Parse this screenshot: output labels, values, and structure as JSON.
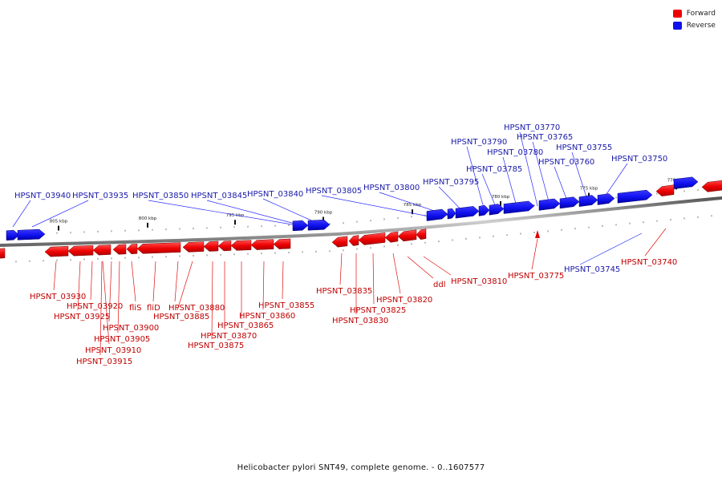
{
  "legend": {
    "forward_label": "Forward",
    "reverse_label": "Reverse",
    "forward_color": "#ff0000",
    "reverse_color": "#1a1aff"
  },
  "caption": "Helicobacter pylori SNT49, complete genome. - 0..1607577",
  "scale_labels": [
    "805 kbp",
    "800 kbp",
    "795 kbp",
    "790 kbp",
    "785 kbp",
    "780 kbp",
    "775 kbp",
    "770 kbp"
  ],
  "reverse_genes": [
    {
      "id": "HPSNT_03940",
      "label": "HPSNT_03940"
    },
    {
      "id": "HPSNT_03935",
      "label": "HPSNT_03935"
    },
    {
      "id": "HPSNT_03850",
      "label": "HPSNT_03850"
    },
    {
      "id": "HPSNT_03845",
      "label": "HPSNT_03845"
    },
    {
      "id": "HPSNT_03840",
      "label": "HPSNT_03840"
    },
    {
      "id": "HPSNT_03805",
      "label": "HPSNT_03805"
    },
    {
      "id": "HPSNT_03800",
      "label": "HPSNT_03800"
    },
    {
      "id": "HPSNT_03795",
      "label": "HPSNT_03795"
    },
    {
      "id": "HPSNT_03790",
      "label": "HPSNT_03790"
    },
    {
      "id": "HPSNT_03785",
      "label": "HPSNT_03785"
    },
    {
      "id": "HPSNT_03780",
      "label": "HPSNT_03780"
    },
    {
      "id": "HPSNT_03770",
      "label": "HPSNT_03770"
    },
    {
      "id": "HPSNT_03765",
      "label": "HPSNT_03765"
    },
    {
      "id": "HPSNT_03760",
      "label": "HPSNT_03760"
    },
    {
      "id": "HPSNT_03755",
      "label": "HPSNT_03755"
    },
    {
      "id": "HPSNT_03750",
      "label": "HPSNT_03750"
    },
    {
      "id": "HPSNT_03745",
      "label": "HPSNT_03745"
    }
  ],
  "forward_genes": [
    {
      "id": "HPSNT_03930",
      "label": "HPSNT_03930"
    },
    {
      "id": "HPSNT_03920",
      "label": "HPSNT_03920"
    },
    {
      "id": "HPSNT_03925",
      "label": "HPSNT_03925"
    },
    {
      "id": "HPSNT_03900",
      "label": "HPSNT_03900"
    },
    {
      "id": "HPSNT_03905",
      "label": "HPSNT_03905"
    },
    {
      "id": "HPSNT_03910",
      "label": "HPSNT_03910"
    },
    {
      "id": "HPSNT_03915",
      "label": "HPSNT_03915"
    },
    {
      "id": "fliS",
      "label": "fliS"
    },
    {
      "id": "fliD",
      "label": "fliD"
    },
    {
      "id": "HPSNT_03880",
      "label": "HPSNT_03880"
    },
    {
      "id": "HPSNT_03885",
      "label": "HPSNT_03885"
    },
    {
      "id": "HPSNT_03870",
      "label": "HPSNT_03870"
    },
    {
      "id": "HPSNT_03875",
      "label": "HPSNT_03875"
    },
    {
      "id": "HPSNT_03865",
      "label": "HPSNT_03865"
    },
    {
      "id": "HPSNT_03860",
      "label": "HPSNT_03860"
    },
    {
      "id": "HPSNT_03855",
      "label": "HPSNT_03855"
    },
    {
      "id": "HPSNT_03835",
      "label": "HPSNT_03835"
    },
    {
      "id": "HPSNT_03825",
      "label": "HPSNT_03825"
    },
    {
      "id": "HPSNT_03830",
      "label": "HPSNT_03830"
    },
    {
      "id": "HPSNT_03820",
      "label": "HPSNT_03820"
    },
    {
      "id": "ddl",
      "label": "ddl"
    },
    {
      "id": "HPSNT_03810",
      "label": "HPSNT_03810"
    },
    {
      "id": "HPSNT_03775",
      "label": "HPSNT_03775"
    },
    {
      "id": "HPSNT_03740",
      "label": "HPSNT_03740"
    }
  ]
}
